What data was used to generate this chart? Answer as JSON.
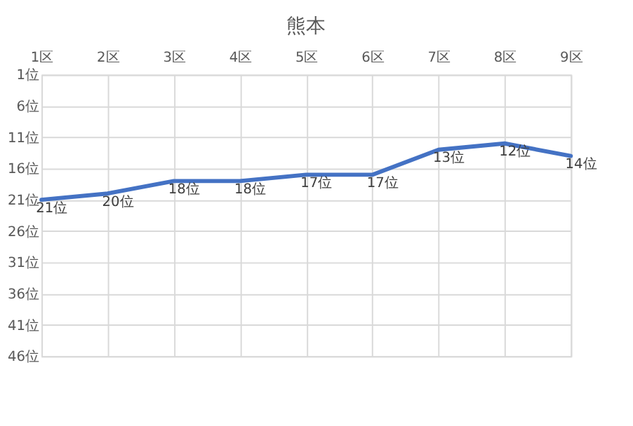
{
  "chart_data": {
    "type": "line",
    "title": "熊本",
    "categories": [
      "1区",
      "2区",
      "3区",
      "4区",
      "5区",
      "6区",
      "7区",
      "8区",
      "9区"
    ],
    "series": [
      {
        "color": "#4472c4",
        "values": [
          21,
          20,
          18,
          18,
          17,
          17,
          13,
          12,
          14
        ],
        "value_labels": [
          "21位",
          "20位",
          "18位",
          "18位",
          "17位",
          "17位",
          "13位",
          "12位",
          "14位"
        ]
      }
    ],
    "ylim": [
      46,
      1
    ],
    "yticks": [
      {
        "value": 1,
        "label": "1位"
      },
      {
        "value": 6,
        "label": "6位"
      },
      {
        "value": 11,
        "label": "11位"
      },
      {
        "value": 16,
        "label": "16位"
      },
      {
        "value": 21,
        "label": "21位"
      },
      {
        "value": 26,
        "label": "26位"
      },
      {
        "value": 31,
        "label": "31位"
      },
      {
        "value": 36,
        "label": "36位"
      },
      {
        "value": 41,
        "label": "41位"
      },
      {
        "value": 46,
        "label": "46位"
      }
    ],
    "grid": true,
    "legend": false,
    "marker": "none",
    "line_style": "solid"
  }
}
